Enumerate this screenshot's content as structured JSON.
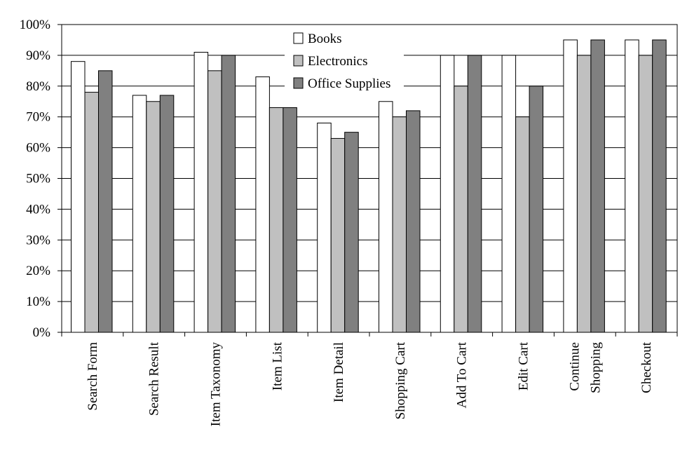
{
  "chart_data": {
    "type": "bar",
    "title": "",
    "xlabel": "",
    "ylabel": "",
    "ylim": [
      0,
      100
    ],
    "y_ticks": [
      "0%",
      "10%",
      "20%",
      "30%",
      "40%",
      "50%",
      "60%",
      "70%",
      "80%",
      "90%",
      "100%"
    ],
    "grid": "horizontal",
    "legend_position": "top-center",
    "categories": [
      [
        "Search Form"
      ],
      [
        "Search Result"
      ],
      [
        "Item Taxonomy"
      ],
      [
        "Item List"
      ],
      [
        "Item Detail"
      ],
      [
        "Shopping Cart"
      ],
      [
        "Add To Cart"
      ],
      [
        "Edit Cart"
      ],
      [
        "Continue",
        "Shopping"
      ],
      [
        "Checkout"
      ]
    ],
    "series": [
      {
        "name": "Books",
        "color": "#ffffff",
        "values": [
          88,
          77,
          91,
          83,
          68,
          75,
          90,
          90,
          95,
          95
        ]
      },
      {
        "name": "Electronics",
        "color": "#c0c0c0",
        "values": [
          78,
          75,
          85,
          73,
          63,
          70,
          80,
          70,
          90,
          90
        ]
      },
      {
        "name": "Office Supplies",
        "color": "#808080",
        "values": [
          85,
          77,
          90,
          73,
          65,
          72,
          90,
          80,
          95,
          95
        ]
      }
    ]
  }
}
